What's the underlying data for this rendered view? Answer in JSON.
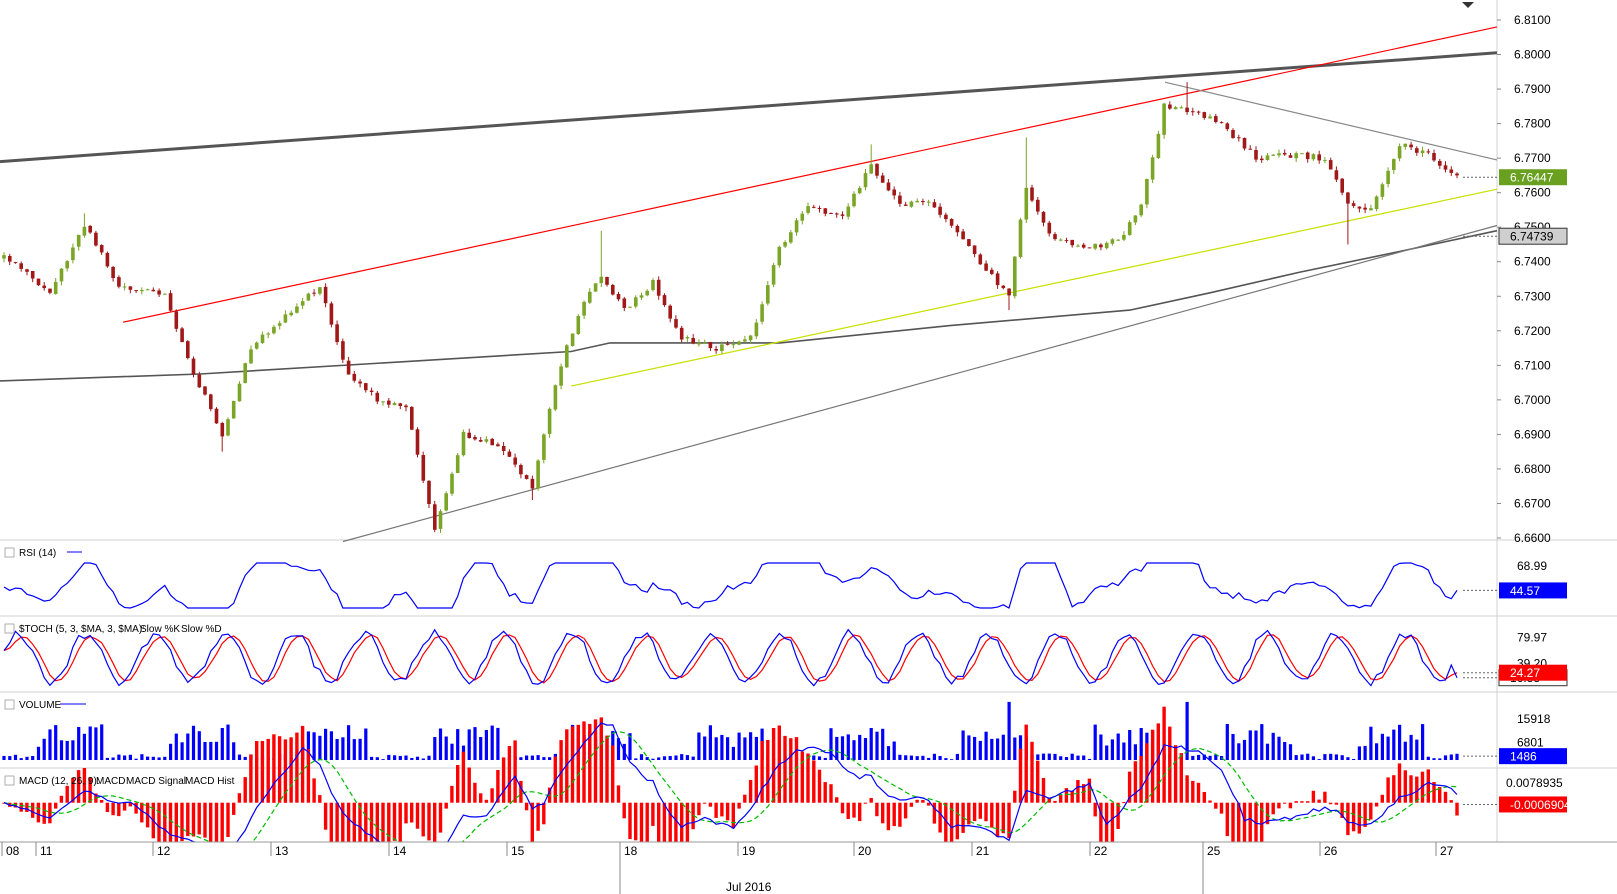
{
  "colors": {
    "up_candle": "#7aa526",
    "down_candle": "#a01818",
    "rsi_line": "#0000ff",
    "stoch_k": "#0000ff",
    "stoch_d": "#ff0000",
    "volume_bar": "#0000ff",
    "macd_line": "#0000ff",
    "macd_signal": "#00bb00",
    "macd_hist": "#ff0000",
    "price_badge": "#6aa020",
    "ma_badge": "#7f7f7f"
  },
  "chart_data": [
    {
      "type": "candlestick",
      "panel": "price",
      "ylim": [
        6.66,
        6.81
      ],
      "y_ticks": [
        "6.8100",
        "6.8000",
        "6.7900",
        "6.7800",
        "6.7700",
        "6.7600",
        "6.7500",
        "6.7400",
        "6.7300",
        "6.7200",
        "6.7100",
        "6.7000",
        "6.6900",
        "6.6800",
        "6.6700",
        "6.6600"
      ],
      "x_ticks": [
        "08",
        "11",
        "12",
        "13",
        "14",
        "15",
        "18",
        "19",
        "20",
        "21",
        "22",
        "25",
        "26",
        "27"
      ],
      "x_month_label": "Jul 2016",
      "last_price": "6.76447",
      "ma_value": "6.74739",
      "anchors": [
        {
          "i": 0,
          "c": 6.742
        },
        {
          "i": 8,
          "c": 6.731
        },
        {
          "i": 14,
          "c": 6.751
        },
        {
          "i": 20,
          "c": 6.733
        },
        {
          "i": 28,
          "c": 6.73
        },
        {
          "i": 33,
          "c": 6.708
        },
        {
          "i": 38,
          "c": 6.69
        },
        {
          "i": 43,
          "c": 6.715
        },
        {
          "i": 50,
          "c": 6.726
        },
        {
          "i": 55,
          "c": 6.733
        },
        {
          "i": 60,
          "c": 6.707
        },
        {
          "i": 65,
          "c": 6.7
        },
        {
          "i": 70,
          "c": 6.698
        },
        {
          "i": 75,
          "c": 6.663
        },
        {
          "i": 80,
          "c": 6.69
        },
        {
          "i": 86,
          "c": 6.687
        },
        {
          "i": 92,
          "c": 6.675
        },
        {
          "i": 96,
          "c": 6.705
        },
        {
          "i": 100,
          "c": 6.725
        },
        {
          "i": 104,
          "c": 6.736
        },
        {
          "i": 108,
          "c": 6.726
        },
        {
          "i": 113,
          "c": 6.734
        },
        {
          "i": 118,
          "c": 6.718
        },
        {
          "i": 124,
          "c": 6.715
        },
        {
          "i": 130,
          "c": 6.718
        },
        {
          "i": 135,
          "c": 6.744
        },
        {
          "i": 140,
          "c": 6.756
        },
        {
          "i": 146,
          "c": 6.753
        },
        {
          "i": 151,
          "c": 6.768
        },
        {
          "i": 156,
          "c": 6.756
        },
        {
          "i": 161,
          "c": 6.758
        },
        {
          "i": 166,
          "c": 6.748
        },
        {
          "i": 171,
          "c": 6.738
        },
        {
          "i": 175,
          "c": 6.73
        },
        {
          "i": 178,
          "c": 6.762
        },
        {
          "i": 182,
          "c": 6.748
        },
        {
          "i": 188,
          "c": 6.744
        },
        {
          "i": 194,
          "c": 6.746
        },
        {
          "i": 198,
          "c": 6.756
        },
        {
          "i": 202,
          "c": 6.785
        },
        {
          "i": 206,
          "c": 6.784
        },
        {
          "i": 212,
          "c": 6.78
        },
        {
          "i": 218,
          "c": 6.77
        },
        {
          "i": 224,
          "c": 6.771
        },
        {
          "i": 230,
          "c": 6.77
        },
        {
          "i": 234,
          "c": 6.756
        },
        {
          "i": 238,
          "c": 6.756
        },
        {
          "i": 243,
          "c": 6.774
        },
        {
          "i": 248,
          "c": 6.771
        },
        {
          "i": 253,
          "c": 6.765
        }
      ],
      "overlays": [
        {
          "name": "long-resistance",
          "color": "#555555",
          "width": 3,
          "x0": 0,
          "p0": 6.769,
          "x1": 1497,
          "p1": 6.8005
        },
        {
          "name": "red-channel-top",
          "color": "#ff0000",
          "width": 1.2,
          "x0": 123,
          "p0": 6.7225,
          "x1": 1497,
          "p1": 6.808
        },
        {
          "name": "grey-support",
          "color": "#777777",
          "width": 1.2,
          "x0": 343,
          "p0": 6.659,
          "x1": 1497,
          "p1": 6.7505
        },
        {
          "name": "yellow-channel",
          "color": "#c8e000",
          "width": 1.2,
          "x0": 571,
          "p0": 6.704,
          "x1": 1497,
          "p1": 6.761
        },
        {
          "name": "descending-resistance",
          "color": "#888888",
          "width": 1.2,
          "x0": 1165,
          "p0": 6.792,
          "x1": 1497,
          "p1": 6.7695
        }
      ],
      "moving_average": [
        {
          "x": 0,
          "p": 6.7055
        },
        {
          "x": 200,
          "p": 6.7075
        },
        {
          "x": 400,
          "p": 6.711
        },
        {
          "x": 571,
          "p": 6.714
        },
        {
          "x": 610,
          "p": 6.7165
        },
        {
          "x": 780,
          "p": 6.7165
        },
        {
          "x": 950,
          "p": 6.7215
        },
        {
          "x": 1130,
          "p": 6.726
        },
        {
          "x": 1210,
          "p": 6.731
        },
        {
          "x": 1300,
          "p": 6.737
        },
        {
          "x": 1400,
          "p": 6.743
        },
        {
          "x": 1497,
          "p": 6.749
        }
      ]
    },
    {
      "type": "line",
      "panel": "rsi",
      "title": "RSI (14)",
      "ylim": [
        25,
        75
      ],
      "y_ticks": [
        "68.99"
      ],
      "last_value": "44.57"
    },
    {
      "type": "line",
      "panel": "stoch",
      "title": "$TOCH (5, 3, $MA, 3, $MA):",
      "series": [
        {
          "name": "Slow %K"
        },
        {
          "name": "Slow %D"
        }
      ],
      "ylim": [
        0,
        100
      ],
      "y_ticks": [
        "79.97",
        "39.20",
        "16.33"
      ],
      "last_values": [
        "24.27",
        "16.33"
      ]
    },
    {
      "type": "bar",
      "panel": "volume",
      "title": "VOLUME",
      "ylim": [
        0,
        24000
      ],
      "y_ticks": [
        "15918",
        "6801"
      ],
      "last_value": "1486"
    },
    {
      "type": "bar",
      "panel": "macd",
      "title": "MACD (12, 26, 9):",
      "series": [
        {
          "name": "MACD"
        },
        {
          "name": "MACD Signal"
        },
        {
          "name": "MACD Hist"
        }
      ],
      "ylim": [
        -0.014,
        0.011
      ],
      "y_ticks": [
        "0.0078935"
      ],
      "last_value": "-0.0006904"
    }
  ]
}
